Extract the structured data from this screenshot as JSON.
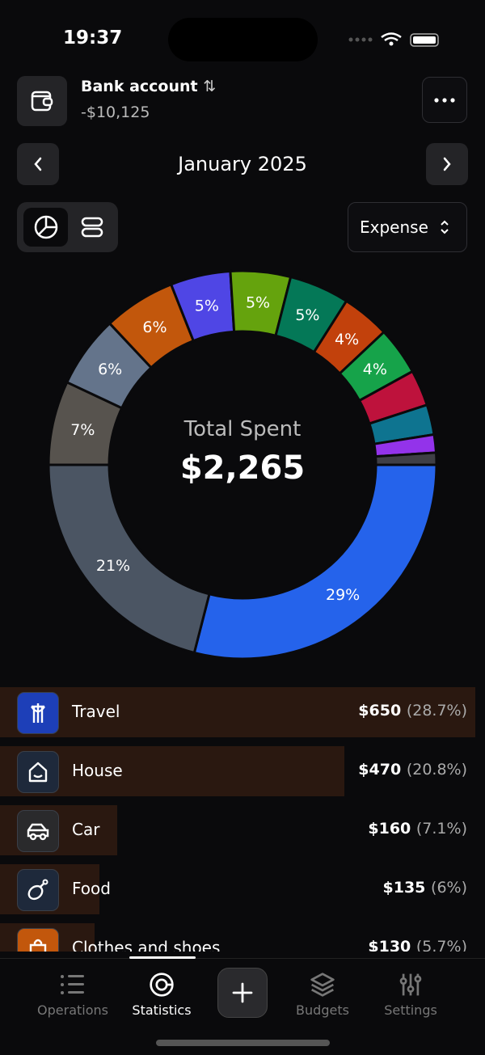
{
  "status": {
    "time": "19:37"
  },
  "header": {
    "account_name": "Bank account",
    "sort_icon": "⇅",
    "balance": "-$10,125",
    "more_icon": "more-horizontal-icon"
  },
  "period": {
    "label": "January 2025"
  },
  "type_select": {
    "value": "Expense"
  },
  "chart_data": {
    "type": "pie",
    "center_label": "Total Spent",
    "center_value": "$2,265",
    "slices": [
      {
        "value": 29,
        "label": "29%",
        "color": "#2563eb"
      },
      {
        "value": 21,
        "label": "21%",
        "color": "#4b5563"
      },
      {
        "value": 7,
        "label": "7%",
        "color": "#57534e"
      },
      {
        "value": 6,
        "label": "6%",
        "color": "#64748b"
      },
      {
        "value": 6,
        "label": "6%",
        "color": "#c2570c"
      },
      {
        "value": 5,
        "label": "5%",
        "color": "#4f46e5"
      },
      {
        "value": 5,
        "label": "5%",
        "color": "#65a30d"
      },
      {
        "value": 5,
        "label": "5%",
        "color": "#047857"
      },
      {
        "value": 4,
        "label": "4%",
        "color": "#c2410c"
      },
      {
        "value": 4,
        "label": "4%",
        "color": "#16a34a"
      },
      {
        "value": 3,
        "label": "",
        "color": "#be123c"
      },
      {
        "value": 2.5,
        "label": "",
        "color": "#0e7490"
      },
      {
        "value": 1.5,
        "label": "",
        "color": "#9333ea"
      },
      {
        "value": 1,
        "label": "",
        "color": "#3f3f46"
      }
    ]
  },
  "categories": [
    {
      "name": "Travel",
      "amount": "$650",
      "percent": "(28.7%)",
      "share": 28.7,
      "icon": "travel-icon",
      "color": "#1d3fb8"
    },
    {
      "name": "House",
      "amount": "$470",
      "percent": "(20.8%)",
      "share": 20.8,
      "icon": "house-icon",
      "color": "#1e293b"
    },
    {
      "name": "Car",
      "amount": "$160",
      "percent": "(7.1%)",
      "share": 7.1,
      "icon": "car-icon",
      "color": "#2a2a2c"
    },
    {
      "name": "Food",
      "amount": "$135",
      "percent": "(6%)",
      "share": 6,
      "icon": "food-icon",
      "color": "#1e293b"
    },
    {
      "name": "Clothes and shoes",
      "amount": "$130",
      "percent": "(5.7%)",
      "share": 5.7,
      "icon": "shopping-bag-icon",
      "color": "#c2570c"
    }
  ],
  "nav": {
    "items": [
      {
        "label": "Operations"
      },
      {
        "label": "Statistics",
        "active": true
      },
      {
        "label": "Budgets"
      },
      {
        "label": "Settings"
      }
    ]
  }
}
